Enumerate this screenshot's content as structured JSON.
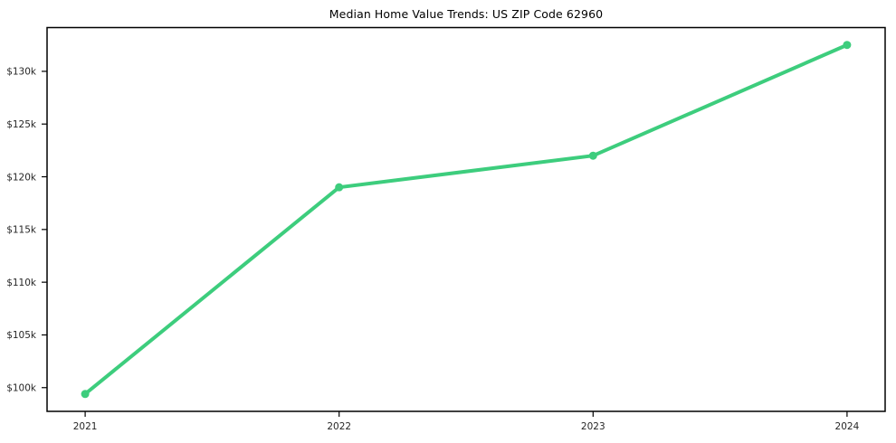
{
  "chart_data": {
    "type": "line",
    "title": "Median Home Value Trends: US ZIP Code 62960",
    "xlabel": "",
    "ylabel": "",
    "categories": [
      "2021",
      "2022",
      "2023",
      "2024"
    ],
    "x": [
      2021,
      2022,
      2023,
      2024
    ],
    "values": [
      99400,
      119000,
      122000,
      132500
    ],
    "yticks": [
      {
        "value": 100000,
        "label": "$100k"
      },
      {
        "value": 105000,
        "label": "$105k"
      },
      {
        "value": 110000,
        "label": "$110k"
      },
      {
        "value": 115000,
        "label": "$115k"
      },
      {
        "value": 120000,
        "label": "$120k"
      },
      {
        "value": 125000,
        "label": "$125k"
      },
      {
        "value": 130000,
        "label": "$130k"
      }
    ],
    "xlim": [
      2020.85,
      2024.15
    ],
    "ylim": [
      97750,
      134150
    ],
    "grid": false,
    "legend_position": "none",
    "line_color": "#3dcd7d",
    "marker": "circle",
    "axis_color": "#000000",
    "tick_label_color": "#262626",
    "title_color": "#000000",
    "plot_background": "#ffffff"
  }
}
